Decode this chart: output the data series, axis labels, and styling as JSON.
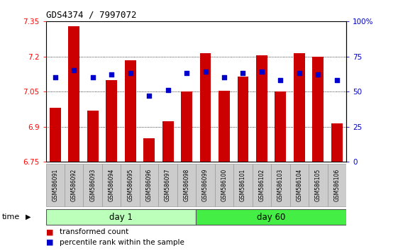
{
  "title": "GDS4374 / 7997072",
  "samples": [
    "GSM586091",
    "GSM586092",
    "GSM586093",
    "GSM586094",
    "GSM586095",
    "GSM586096",
    "GSM586097",
    "GSM586098",
    "GSM586099",
    "GSM586100",
    "GSM586101",
    "GSM586102",
    "GSM586103",
    "GSM586104",
    "GSM586105",
    "GSM586106"
  ],
  "bar_values": [
    6.98,
    7.33,
    6.97,
    7.1,
    7.185,
    6.85,
    6.925,
    7.05,
    7.215,
    7.055,
    7.115,
    7.205,
    7.05,
    7.215,
    7.2,
    6.915
  ],
  "dot_percentiles": [
    60,
    65,
    60,
    62,
    63,
    47,
    51,
    63,
    64,
    60,
    63,
    64,
    58,
    63,
    62,
    58
  ],
  "bar_color": "#cc0000",
  "dot_color": "#0000cc",
  "ylim_left": [
    6.75,
    7.35
  ],
  "ylim_right": [
    0,
    100
  ],
  "yticks_left": [
    6.75,
    6.9,
    7.05,
    7.2,
    7.35
  ],
  "yticks_right": [
    0,
    25,
    50,
    75,
    100
  ],
  "ytick_labels_right": [
    "0",
    "25",
    "50",
    "75",
    "100%"
  ],
  "grid_values": [
    6.9,
    7.05,
    7.2
  ],
  "day1_samples": 8,
  "day60_samples": 8,
  "day1_label": "day 1",
  "day60_label": "day 60",
  "day1_color": "#bbffbb",
  "day60_color": "#44ee44",
  "time_label": "time",
  "legend_bar_label": "transformed count",
  "legend_dot_label": "percentile rank within the sample",
  "bar_bottom": 6.75,
  "bar_width": 0.6,
  "sample_box_color": "#cccccc",
  "sample_box_edge": "#999999",
  "title_fontsize": 9,
  "axis_fontsize": 7.5,
  "sample_fontsize": 5.5,
  "day_fontsize": 8.5,
  "legend_fontsize": 7.5
}
